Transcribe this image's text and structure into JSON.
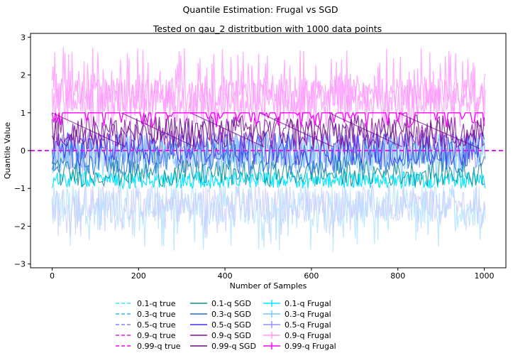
{
  "figure": {
    "suptitle": "Quantile Estimation: Frugal vs SGD"
  },
  "chart_data": {
    "type": "line",
    "title": "Tested on gau_2 distritbution with 1000 data points",
    "xlabel": "Number of Samples",
    "ylabel": "Quantile Value",
    "xlim": [
      -50,
      1050
    ],
    "ylim": [
      -3.1,
      3.1
    ],
    "xticks": [
      0,
      200,
      400,
      600,
      800,
      1000
    ],
    "yticks": [
      -3,
      -2,
      -1,
      0,
      1,
      2,
      3
    ],
    "x_range": [
      0,
      1000
    ],
    "true_lines": [
      {
        "name": "0.1-q true",
        "value": 0,
        "color": "#2ee6f0"
      },
      {
        "name": "0.3-q true",
        "value": 0,
        "color": "#2bb8f0"
      },
      {
        "name": "0.5-q true",
        "value": 0,
        "color": "#8080f0"
      },
      {
        "name": "0.9-q true",
        "value": 0,
        "color": "#e020e0"
      },
      {
        "name": "0.99-q true",
        "value": 0,
        "color": "#ff00ff"
      }
    ],
    "sgd_series": [
      {
        "name": "0.1-q SGD",
        "color": "#138a8a",
        "center": -0.6,
        "spread": 0.35
      },
      {
        "name": "0.3-q SGD",
        "color": "#1f6fd0",
        "center": -0.2,
        "spread": 0.45
      },
      {
        "name": "0.5-q SGD",
        "color": "#3b2ef0",
        "center": 0.05,
        "spread": 0.45
      },
      {
        "name": "0.9-q SGD",
        "color": "#8a10a8",
        "center": 0.45,
        "spread": 0.45
      },
      {
        "name": "0.99-q SGD",
        "color": "#6a0a8a",
        "center": 0.5,
        "spread": 0.45
      }
    ],
    "frugal_series": [
      {
        "name": "0.1-q Frugal",
        "color": "#00e5ff",
        "band": [
          -1.0,
          -0.55
        ]
      },
      {
        "name": "0.3-q Frugal",
        "color": "#6fc8ff",
        "band": [
          -0.6,
          0.5
        ]
      },
      {
        "name": "0.5-q Frugal",
        "color": "#8f8fff",
        "band": [
          -0.5,
          0.5
        ]
      },
      {
        "name": "0.9-q Frugal",
        "color": "#ff99ff",
        "band": [
          0.5,
          1.9
        ]
      },
      {
        "name": "0.99-q Frugal",
        "color": "#ff00ff",
        "band": [
          0.6,
          1.0
        ]
      }
    ],
    "legend_placement": "bottom-center, three columns",
    "grid": false
  }
}
